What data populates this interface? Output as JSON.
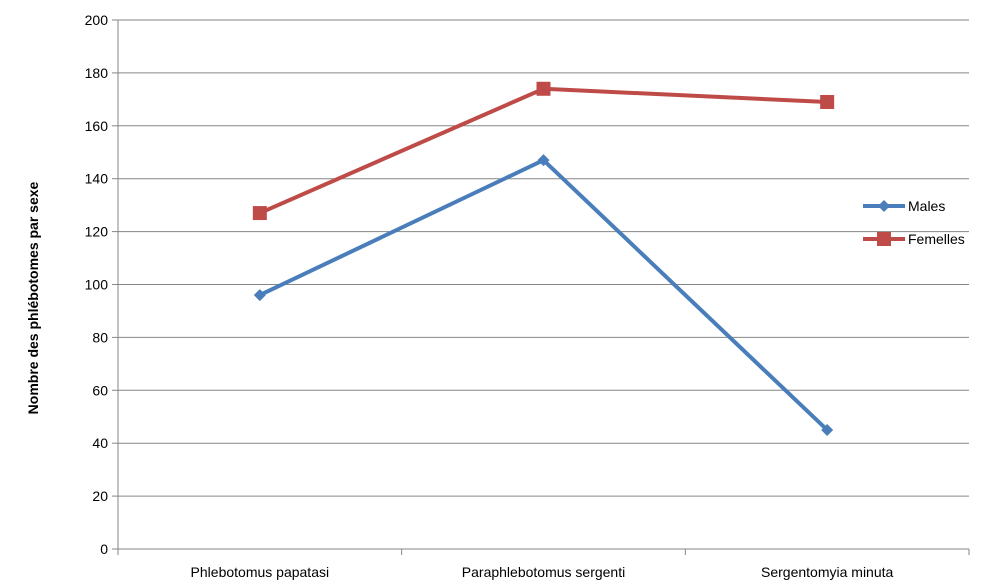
{
  "chart_data": {
    "type": "line",
    "title": "",
    "xlabel": "",
    "ylabel": "Nombre des phlébotomes par sexe",
    "categories": [
      "Phlebotomus papatasi",
      "Paraphlebotomus sergenti",
      "Sergentomyia minuta"
    ],
    "ylim": [
      0,
      200
    ],
    "yticks": [
      0,
      20,
      40,
      60,
      80,
      100,
      120,
      140,
      160,
      180,
      200
    ],
    "grid": true,
    "legend_position": "right",
    "series": [
      {
        "name": "Males",
        "values": [
          96,
          147,
          45
        ],
        "color": "#4a7ebb",
        "marker": "diamond"
      },
      {
        "name": "Femelles",
        "values": [
          127,
          174,
          169
        ],
        "color": "#be4b48",
        "marker": "square"
      }
    ]
  }
}
